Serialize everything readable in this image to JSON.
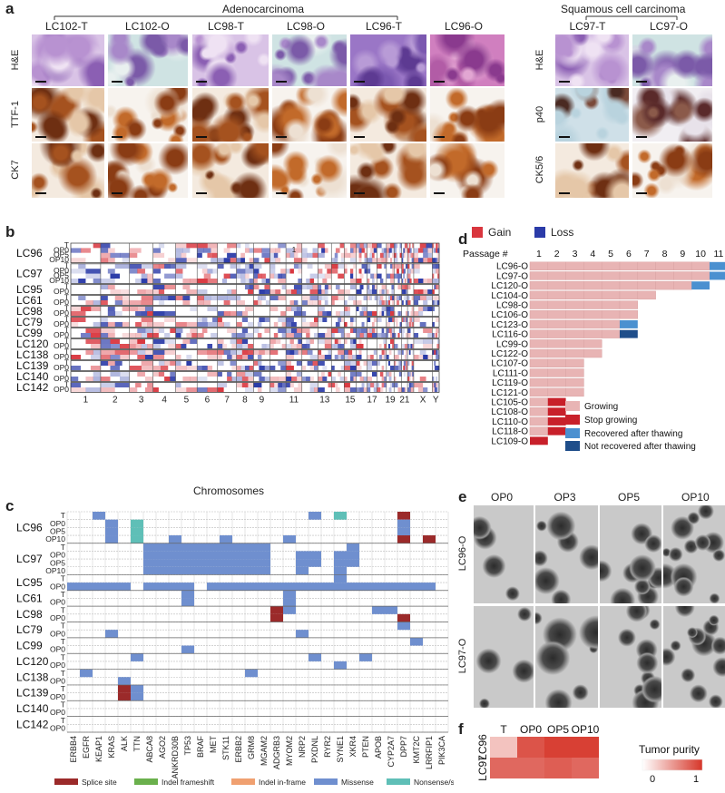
{
  "panels": {
    "a": {
      "label": "a",
      "groups": [
        "Adenocarcinoma",
        "Squamous cell carcinoma"
      ],
      "samples": [
        "LC102-T",
        "LC102-O",
        "LC98-T",
        "LC98-O",
        "LC96-T",
        "LC96-O",
        "LC97-T",
        "LC97-O"
      ],
      "rows_adeno": [
        "H&E",
        "TTF-1",
        "CK7"
      ],
      "rows_squam": [
        "H&E",
        "p40",
        "CK5/6"
      ]
    },
    "b": {
      "label": "b",
      "legend": [
        "Gain",
        "Loss"
      ],
      "colors": {
        "gain": "#d9363e",
        "loss": "#2b3ba8"
      },
      "xlabel": "Chromosomes",
      "chrom_ticks": [
        "1",
        "2",
        "3",
        "4",
        "5",
        "6",
        "7",
        "8",
        "9",
        "11",
        "13",
        "15",
        "17",
        "19",
        "21",
        "X",
        "Y"
      ],
      "inline_mark": "1",
      "samples": [
        {
          "name": "LC96",
          "tracks": [
            "T",
            "OP0",
            "OP5",
            "OP10"
          ]
        },
        {
          "name": "LC97",
          "tracks": [
            "T",
            "OP0",
            "OP5",
            "OP10"
          ]
        },
        {
          "name": "LC95",
          "tracks": [
            "T",
            "OP0"
          ]
        },
        {
          "name": "LC61",
          "tracks": [
            "T",
            "OP0"
          ]
        },
        {
          "name": "LC98",
          "tracks": [
            "T",
            "OP0"
          ]
        },
        {
          "name": "LC79",
          "tracks": [
            "T",
            "OP0"
          ]
        },
        {
          "name": "LC99",
          "tracks": [
            "T",
            "OP0"
          ]
        },
        {
          "name": "LC120",
          "tracks": [
            "T",
            "OP0"
          ]
        },
        {
          "name": "LC138",
          "tracks": [
            "T",
            "OP0"
          ]
        },
        {
          "name": "LC139",
          "tracks": [
            "T",
            "OP0"
          ]
        },
        {
          "name": "LC140",
          "tracks": [
            "T",
            "OP0"
          ]
        },
        {
          "name": "LC142",
          "tracks": [
            "T",
            "OP0"
          ]
        }
      ]
    },
    "c": {
      "label": "c",
      "genes": [
        "ERBB4",
        "EGFR",
        "KEAP1",
        "KRAS",
        "ALK",
        "TTN",
        "ABCA8",
        "AGO2",
        "ANKRD30B",
        "TP53",
        "BRAF",
        "MET",
        "STK11",
        "ERBB2",
        "GRM8",
        "MGAM2",
        "ADGRB3",
        "MYOM2",
        "NRP2",
        "PXDNL",
        "RYR2",
        "SYNE1",
        "XKR4",
        "PTEN",
        "APOB",
        "CYP2A7",
        "DPP7",
        "KMT2C",
        "LRRFIP1",
        "PIK3CA"
      ],
      "legend": [
        {
          "name": "Splice site",
          "color": "#9b2a2a"
        },
        {
          "name": "Indel frameshift",
          "color": "#6ab04c"
        },
        {
          "name": "Indel in-frame",
          "color": "#f0a070"
        },
        {
          "name": "Missense",
          "color": "#6f8fcf"
        },
        {
          "name": "Nonsense/stop-gain",
          "color": "#5fbfb7"
        }
      ],
      "mutations": [
        {
          "row": 0,
          "gene": 2,
          "type": "Missense"
        },
        {
          "row": 0,
          "gene": 19,
          "type": "Missense"
        },
        {
          "row": 0,
          "gene": 21,
          "type": "Nonsense/stop-gain"
        },
        {
          "row": 0,
          "gene": 26,
          "type": "Splice site"
        },
        {
          "row": 1,
          "gene": 3,
          "type": "Missense"
        },
        {
          "row": 1,
          "gene": 5,
          "type": "Nonsense/stop-gain"
        },
        {
          "row": 1,
          "gene": 26,
          "type": "Missense"
        },
        {
          "row": 2,
          "gene": 3,
          "type": "Missense"
        },
        {
          "row": 2,
          "gene": 5,
          "type": "Nonsense/stop-gain"
        },
        {
          "row": 2,
          "gene": 26,
          "type": "Missense"
        },
        {
          "row": 3,
          "gene": 3,
          "type": "Missense"
        },
        {
          "row": 3,
          "gene": 5,
          "type": "Nonsense/stop-gain"
        },
        {
          "row": 3,
          "gene": 8,
          "type": "Missense"
        },
        {
          "row": 3,
          "gene": 12,
          "type": "Missense"
        },
        {
          "row": 3,
          "gene": 17,
          "type": "Missense"
        },
        {
          "row": 3,
          "gene": 26,
          "type": "Splice site"
        },
        {
          "row": 3,
          "gene": 28,
          "type": "Splice site"
        },
        {
          "row": 4,
          "gene": 6,
          "type": "Missense"
        },
        {
          "row": 4,
          "gene": 7,
          "type": "Missense"
        },
        {
          "row": 4,
          "gene": 8,
          "type": "Missense"
        },
        {
          "row": 4,
          "gene": 9,
          "type": "Missense"
        },
        {
          "row": 4,
          "gene": 10,
          "type": "Missense"
        },
        {
          "row": 4,
          "gene": 11,
          "type": "Missense"
        },
        {
          "row": 4,
          "gene": 12,
          "type": "Missense"
        },
        {
          "row": 4,
          "gene": 13,
          "type": "Missense"
        },
        {
          "row": 4,
          "gene": 14,
          "type": "Missense"
        },
        {
          "row": 4,
          "gene": 15,
          "type": "Missense"
        },
        {
          "row": 4,
          "gene": 22,
          "type": "Missense"
        },
        {
          "row": 5,
          "gene": 6,
          "type": "Missense"
        },
        {
          "row": 5,
          "gene": 7,
          "type": "Missense"
        },
        {
          "row": 5,
          "gene": 8,
          "type": "Missense"
        },
        {
          "row": 5,
          "gene": 9,
          "type": "Missense"
        },
        {
          "row": 5,
          "gene": 10,
          "type": "Missense"
        },
        {
          "row": 5,
          "gene": 11,
          "type": "Missense"
        },
        {
          "row": 5,
          "gene": 12,
          "type": "Missense"
        },
        {
          "row": 5,
          "gene": 13,
          "type": "Missense"
        },
        {
          "row": 5,
          "gene": 14,
          "type": "Missense"
        },
        {
          "row": 5,
          "gene": 15,
          "type": "Missense"
        },
        {
          "row": 5,
          "gene": 18,
          "type": "Missense"
        },
        {
          "row": 5,
          "gene": 19,
          "type": "Missense"
        },
        {
          "row": 5,
          "gene": 21,
          "type": "Missense"
        },
        {
          "row": 5,
          "gene": 22,
          "type": "Missense"
        },
        {
          "row": 6,
          "gene": 6,
          "type": "Missense"
        },
        {
          "row": 6,
          "gene": 7,
          "type": "Missense"
        },
        {
          "row": 6,
          "gene": 8,
          "type": "Missense"
        },
        {
          "row": 6,
          "gene": 9,
          "type": "Missense"
        },
        {
          "row": 6,
          "gene": 10,
          "type": "Missense"
        },
        {
          "row": 6,
          "gene": 11,
          "type": "Missense"
        },
        {
          "row": 6,
          "gene": 12,
          "type": "Missense"
        },
        {
          "row": 6,
          "gene": 13,
          "type": "Missense"
        },
        {
          "row": 6,
          "gene": 14,
          "type": "Missense"
        },
        {
          "row": 6,
          "gene": 15,
          "type": "Missense"
        },
        {
          "row": 6,
          "gene": 18,
          "type": "Missense"
        },
        {
          "row": 6,
          "gene": 19,
          "type": "Missense"
        },
        {
          "row": 6,
          "gene": 21,
          "type": "Missense"
        },
        {
          "row": 6,
          "gene": 22,
          "type": "Missense"
        },
        {
          "row": 7,
          "gene": 6,
          "type": "Missense"
        },
        {
          "row": 7,
          "gene": 7,
          "type": "Missense"
        },
        {
          "row": 7,
          "gene": 8,
          "type": "Missense"
        },
        {
          "row": 7,
          "gene": 9,
          "type": "Missense"
        },
        {
          "row": 7,
          "gene": 10,
          "type": "Missense"
        },
        {
          "row": 7,
          "gene": 11,
          "type": "Missense"
        },
        {
          "row": 7,
          "gene": 12,
          "type": "Missense"
        },
        {
          "row": 7,
          "gene": 13,
          "type": "Missense"
        },
        {
          "row": 7,
          "gene": 14,
          "type": "Missense"
        },
        {
          "row": 7,
          "gene": 15,
          "type": "Missense"
        },
        {
          "row": 7,
          "gene": 18,
          "type": "Missense"
        },
        {
          "row": 7,
          "gene": 21,
          "type": "Missense"
        },
        {
          "row": 8,
          "gene": 21,
          "type": "Missense"
        },
        {
          "row": 9,
          "gene": 0,
          "type": "Missense"
        },
        {
          "row": 9,
          "gene": 1,
          "type": "Missense"
        },
        {
          "row": 9,
          "gene": 2,
          "type": "Missense"
        },
        {
          "row": 9,
          "gene": 3,
          "type": "Missense"
        },
        {
          "row": 9,
          "gene": 4,
          "type": "Missense"
        },
        {
          "row": 9,
          "gene": 6,
          "type": "Missense"
        },
        {
          "row": 9,
          "gene": 7,
          "type": "Missense"
        },
        {
          "row": 9,
          "gene": 8,
          "type": "Missense"
        },
        {
          "row": 9,
          "gene": 9,
          "type": "Missense"
        },
        {
          "row": 9,
          "gene": 11,
          "type": "Missense"
        },
        {
          "row": 9,
          "gene": 12,
          "type": "Missense"
        },
        {
          "row": 9,
          "gene": 13,
          "type": "Missense"
        },
        {
          "row": 9,
          "gene": 14,
          "type": "Missense"
        },
        {
          "row": 9,
          "gene": 15,
          "type": "Missense"
        },
        {
          "row": 9,
          "gene": 16,
          "type": "Missense"
        },
        {
          "row": 9,
          "gene": 17,
          "type": "Missense"
        },
        {
          "row": 9,
          "gene": 18,
          "type": "Missense"
        },
        {
          "row": 9,
          "gene": 19,
          "type": "Missense"
        },
        {
          "row": 9,
          "gene": 20,
          "type": "Missense"
        },
        {
          "row": 9,
          "gene": 21,
          "type": "Missense"
        },
        {
          "row": 9,
          "gene": 22,
          "type": "Missense"
        },
        {
          "row": 9,
          "gene": 23,
          "type": "Missense"
        },
        {
          "row": 9,
          "gene": 24,
          "type": "Missense"
        },
        {
          "row": 9,
          "gene": 25,
          "type": "Missense"
        },
        {
          "row": 9,
          "gene": 26,
          "type": "Missense"
        },
        {
          "row": 9,
          "gene": 27,
          "type": "Missense"
        },
        {
          "row": 9,
          "gene": 28,
          "type": "Missense"
        },
        {
          "row": 10,
          "gene": 9,
          "type": "Missense"
        },
        {
          "row": 10,
          "gene": 17,
          "type": "Missense"
        },
        {
          "row": 11,
          "gene": 9,
          "type": "Missense"
        },
        {
          "row": 11,
          "gene": 17,
          "type": "Missense"
        },
        {
          "row": 12,
          "gene": 16,
          "type": "Splice site"
        },
        {
          "row": 12,
          "gene": 17,
          "type": "Missense"
        },
        {
          "row": 12,
          "gene": 24,
          "type": "Missense"
        },
        {
          "row": 12,
          "gene": 25,
          "type": "Missense"
        },
        {
          "row": 13,
          "gene": 16,
          "type": "Splice site"
        },
        {
          "row": 13,
          "gene": 26,
          "type": "Splice site"
        },
        {
          "row": 14,
          "gene": 26,
          "type": "Missense"
        },
        {
          "row": 15,
          "gene": 3,
          "type": "Missense"
        },
        {
          "row": 15,
          "gene": 18,
          "type": "Missense"
        },
        {
          "row": 16,
          "gene": 27,
          "type": "Missense"
        },
        {
          "row": 17,
          "gene": 9,
          "type": "Missense"
        },
        {
          "row": 18,
          "gene": 5,
          "type": "Missense"
        },
        {
          "row": 18,
          "gene": 19,
          "type": "Missense"
        },
        {
          "row": 18,
          "gene": 23,
          "type": "Missense"
        },
        {
          "row": 19,
          "gene": 21,
          "type": "Missense"
        },
        {
          "row": 20,
          "gene": 1,
          "type": "Missense"
        },
        {
          "row": 20,
          "gene": 14,
          "type": "Missense"
        },
        {
          "row": 21,
          "gene": 4,
          "type": "Missense"
        },
        {
          "row": 22,
          "gene": 4,
          "type": "Splice site"
        },
        {
          "row": 22,
          "gene": 5,
          "type": "Missense"
        },
        {
          "row": 23,
          "gene": 4,
          "type": "Splice site"
        },
        {
          "row": 23,
          "gene": 5,
          "type": "Missense"
        }
      ]
    },
    "d": {
      "label": "d",
      "chart_data": {
        "type": "bar",
        "orientation": "horizontal",
        "xlabel": "Passage #",
        "ticks": [
          "1",
          "2",
          "3",
          "4",
          "5",
          "6",
          "7",
          "8",
          "9",
          "10",
          "11"
        ],
        "categories": [
          "LC96-O",
          "LC97-O",
          "LC120-O",
          "LC104-O",
          "LC98-O",
          "LC106-O",
          "LC123-O",
          "LC116-O",
          "LC99-O",
          "LC122-O",
          "LC107-O",
          "LC111-O",
          "LC119-O",
          "LC121-O",
          "LC105-O",
          "LC108-O",
          "LC110-O",
          "LC118-O",
          "LC109-O"
        ],
        "segments": [
          [
            {
              "state": "Growing",
              "passages": 10
            },
            {
              "state": "Recovered after thawing",
              "passages": 1
            }
          ],
          [
            {
              "state": "Growing",
              "passages": 10
            },
            {
              "state": "Recovered after thawing",
              "passages": 1
            }
          ],
          [
            {
              "state": "Growing",
              "passages": 9
            },
            {
              "state": "Recovered after thawing",
              "passages": 1
            }
          ],
          [
            {
              "state": "Growing",
              "passages": 7
            }
          ],
          [
            {
              "state": "Growing",
              "passages": 6
            }
          ],
          [
            {
              "state": "Growing",
              "passages": 6
            }
          ],
          [
            {
              "state": "Growing",
              "passages": 5
            },
            {
              "state": "Recovered after thawing",
              "passages": 1
            }
          ],
          [
            {
              "state": "Growing",
              "passages": 5
            },
            {
              "state": "Not recovered after thawing",
              "passages": 1
            }
          ],
          [
            {
              "state": "Growing",
              "passages": 4
            }
          ],
          [
            {
              "state": "Growing",
              "passages": 4
            }
          ],
          [
            {
              "state": "Growing",
              "passages": 3
            }
          ],
          [
            {
              "state": "Growing",
              "passages": 3
            }
          ],
          [
            {
              "state": "Growing",
              "passages": 3
            }
          ],
          [
            {
              "state": "Growing",
              "passages": 3
            }
          ],
          [
            {
              "state": "Growing",
              "passages": 1
            },
            {
              "state": "Stop growing",
              "passages": 1
            }
          ],
          [
            {
              "state": "Growing",
              "passages": 1
            },
            {
              "state": "Stop growing",
              "passages": 1
            }
          ],
          [
            {
              "state": "Growing",
              "passages": 1
            },
            {
              "state": "Stop growing",
              "passages": 1
            }
          ],
          [
            {
              "state": "Growing",
              "passages": 1
            },
            {
              "state": "Stop growing",
              "passages": 1
            }
          ],
          [
            {
              "state": "Stop growing",
              "passages": 1
            }
          ]
        ],
        "legend": [
          {
            "name": "Growing",
            "color": "#e8b4b4"
          },
          {
            "name": "Stop growing",
            "color": "#c8202a"
          },
          {
            "name": "Recovered after thawing",
            "color": "#4a90d0"
          },
          {
            "name": "Not recovered after thawing",
            "color": "#1f4e8a"
          }
        ]
      }
    },
    "e": {
      "label": "e",
      "columns": [
        "OP0",
        "OP3",
        "OP5",
        "OP10"
      ],
      "rows": [
        "LC96-O",
        "LC97-O"
      ]
    },
    "f": {
      "label": "f",
      "chart_data": {
        "type": "heatmap",
        "columns": [
          "T",
          "OP0",
          "OP5",
          "OP10"
        ],
        "rows": [
          "LC96",
          "LC97"
        ],
        "values": [
          [
            0.3,
            0.85,
            0.95,
            0.95
          ],
          [
            0.75,
            0.75,
            0.8,
            0.75
          ]
        ],
        "legend_title": "Tumor purity",
        "range": [
          0,
          1
        ],
        "range_labels": [
          "0",
          "1"
        ]
      }
    }
  }
}
